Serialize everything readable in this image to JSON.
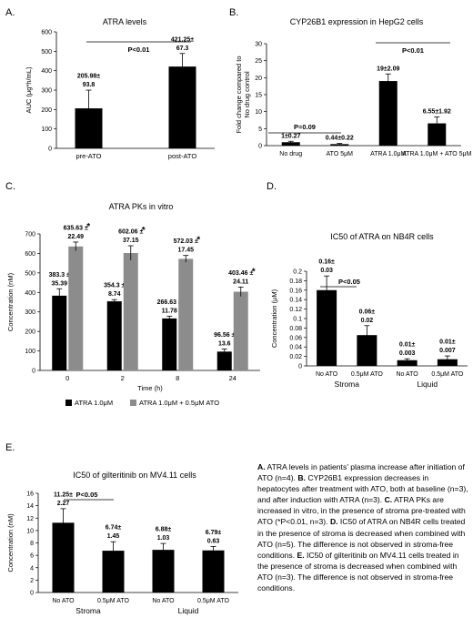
{
  "panel_letters": {
    "a": "A.",
    "b": "B.",
    "c": "C.",
    "d": "D.",
    "e": "E."
  },
  "colors": {
    "black": "#000000",
    "gray": "#8c8c8c"
  },
  "caption": [
    {
      "bold": true,
      "text": "A."
    },
    {
      "bold": false,
      "text": " ATRA levels in patients’ plasma increase after initiation of ATO (n=4). "
    },
    {
      "bold": true,
      "text": "B."
    },
    {
      "bold": false,
      "text": " CYP26B1 expression decreases in hepatocytes after treatment with ATO, both at baseline (n=3), and after induction with ATRA (n=3). "
    },
    {
      "bold": true,
      "text": "C."
    },
    {
      "bold": false,
      "text": " ATRA PKs are increased in vitro, in the presence of stroma pre-treated with ATO (*P<0.01, n=3). "
    },
    {
      "bold": true,
      "text": "D."
    },
    {
      "bold": false,
      "text": " IC50 of ATRA on NB4R cells treated in the presence of stroma is decreased when combined with ATO (n=5). The difference is not observed in stroma-free conditions. "
    },
    {
      "bold": true,
      "text": "E."
    },
    {
      "bold": false,
      "text": " IC50 of gilteritinib on MV4.11 cells treated in the presence of stroma is decreased when combined with ATO (n=3). The difference is not observed in stroma-free conditions."
    }
  ],
  "chart_data": [
    {
      "id": "A",
      "type": "bar",
      "title": "ATRA levels",
      "ylabel": "AUC (μg*h/mL)",
      "ylim": [
        0,
        600
      ],
      "yticks": [
        0,
        100,
        200,
        300,
        400,
        500,
        600
      ],
      "categories": [
        "pre-ATO",
        "post-ATO"
      ],
      "series": [
        {
          "color": "#000000",
          "values": [
            205.98,
            421.25
          ],
          "errors": [
            93.8,
            67.3
          ]
        }
      ],
      "data_labels": [
        [
          "205.98±",
          "93.8"
        ],
        [
          "421.25±",
          "67.3"
        ]
      ],
      "annotations": [
        {
          "text": "P<0.01"
        }
      ]
    },
    {
      "id": "B",
      "type": "bar",
      "title": "CYP26B1 expression in HepG2 cells",
      "ylabel": "Fold change compared to No drug control",
      "ylim": [
        0,
        30
      ],
      "yticks": [
        0,
        5,
        10,
        15,
        20,
        25,
        30
      ],
      "categories": [
        "No drug",
        "ATO 5μM",
        "ATRA 1.0μM",
        "ATRA 1.0μM + ATO 5μM"
      ],
      "series": [
        {
          "color": "#000000",
          "values": [
            1,
            0.44,
            19,
            6.55
          ],
          "errors": [
            0.27,
            0.22,
            2.09,
            1.92
          ]
        }
      ],
      "data_labels": [
        [
          "1±0.27"
        ],
        [
          "0.44±0.22"
        ],
        [
          "19±2.09"
        ],
        [
          "6.55±1.92"
        ]
      ],
      "annotations": [
        {
          "text": "P=0.09"
        },
        {
          "text": "P<0.01"
        }
      ]
    },
    {
      "id": "C",
      "type": "bar",
      "title": "ATRA PKs in vitro",
      "xlabel": "Time (h)",
      "ylabel": "Concentration (nM)",
      "ylim": [
        0,
        700
      ],
      "yticks": [
        0,
        100,
        200,
        300,
        400,
        500,
        600,
        700
      ],
      "categories": [
        "0",
        "2",
        "8",
        "24"
      ],
      "series": [
        {
          "name": "ATRA 1.0μM",
          "color": "#000000",
          "values": [
            383.3,
            354.3,
            266.63,
            96.56
          ],
          "errors": [
            35.39,
            8.74,
            11.78,
            13.6
          ]
        },
        {
          "name": "ATRA 1.0μM + 0.5μM ATO",
          "color": "#8c8c8c",
          "values": [
            635.63,
            602.06,
            572.03,
            403.46
          ],
          "errors": [
            22.49,
            37.15,
            17.45,
            24.11
          ]
        }
      ],
      "data_labels": [
        [
          [
            "383.3 ±",
            "35.39"
          ],
          [
            "354.3 ±",
            "8.74"
          ],
          [
            "266.63 ±",
            "11.78"
          ],
          [
            "96.56 ±",
            "13.6"
          ]
        ],
        [
          [
            "635.63 ±",
            "22.49"
          ],
          [
            "602.06 ±",
            "37.15"
          ],
          [
            "572.03 ±",
            "17.45"
          ],
          [
            "403.46 ±",
            "24.11"
          ]
        ]
      ],
      "star": "*",
      "legend": "bottom"
    },
    {
      "id": "D",
      "type": "bar",
      "title": "IC50 of ATRA on NB4R cells",
      "ylabel": "Concentration (μM)",
      "ylim": [
        0,
        0.2
      ],
      "yticks": [
        0,
        0.02,
        0.04,
        0.06,
        0.08,
        0.1,
        0.12,
        0.14,
        0.16,
        0.18,
        0.2
      ],
      "ytick_labels": [
        "0",
        "0.02",
        "0.04",
        "0.06",
        "0.08",
        "0.1",
        "0.12",
        "0.14",
        "0.16",
        "0.18",
        "0.2"
      ],
      "categories": [
        "No ATO",
        "0.5μM ATO",
        "No ATO",
        "0.5μM ATO"
      ],
      "groups": [
        "Stroma",
        "Liquid"
      ],
      "series": [
        {
          "color": "#000000",
          "values": [
            0.16,
            0.065,
            0.012,
            0.014
          ],
          "errors": [
            0.03,
            0.02,
            0.003,
            0.007
          ]
        }
      ],
      "data_labels": [
        [
          "0.16±",
          "0.03"
        ],
        [
          "0.06±",
          "0.02"
        ],
        [
          "0.01±",
          "0.003"
        ],
        [
          "0.01±",
          "0.007"
        ]
      ],
      "annotations": [
        {
          "text": "P<0.05"
        }
      ]
    },
    {
      "id": "E",
      "type": "bar",
      "title": "IC50 of gilteritinib on MV4.11 cells",
      "ylabel": "Concentration (nM)",
      "ylim": [
        0,
        16
      ],
      "yticks": [
        0,
        2,
        4,
        6,
        8,
        10,
        12,
        14,
        16
      ],
      "categories": [
        "No ATO",
        "0.5μM ATO",
        "No ATO",
        "0.5μM ATO"
      ],
      "groups": [
        "Stroma",
        "Liquid"
      ],
      "series": [
        {
          "color": "#000000",
          "values": [
            11.25,
            6.74,
            6.88,
            6.79
          ],
          "errors": [
            2.27,
            1.45,
            1.03,
            0.63
          ]
        }
      ],
      "data_labels": [
        [
          "11.25±",
          "2.27"
        ],
        [
          "6.74±",
          "1.45"
        ],
        [
          "6.88±",
          "1.03"
        ],
        [
          "6.79±",
          "0.63"
        ]
      ],
      "annotations": [
        {
          "text": "P<0.05"
        }
      ]
    }
  ]
}
